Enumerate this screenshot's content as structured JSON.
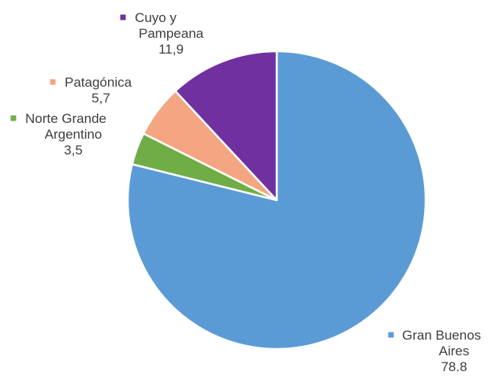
{
  "chart_data": {
    "type": "pie",
    "title": "",
    "slices": [
      {
        "label_lines": [
          "Gran Buenos",
          "Aires"
        ],
        "value_text": "78.8",
        "value": 78.8,
        "color": "#5B9BD5"
      },
      {
        "label_lines": [
          "Norte Grande",
          "Argentino"
        ],
        "value_text": "3,5",
        "value": 3.5,
        "color": "#70AD47"
      },
      {
        "label_lines": [
          "Patagónica"
        ],
        "value_text": "5,7",
        "value": 5.7,
        "color": "#F4A582"
      },
      {
        "label_lines": [
          "Cuyo y",
          "Pampeana"
        ],
        "value_text": "11,9",
        "value": 11.9,
        "color": "#7030A0"
      }
    ],
    "legend": "labels beside slices with color markers",
    "start_angle": "12 o'clock, clockwise"
  }
}
